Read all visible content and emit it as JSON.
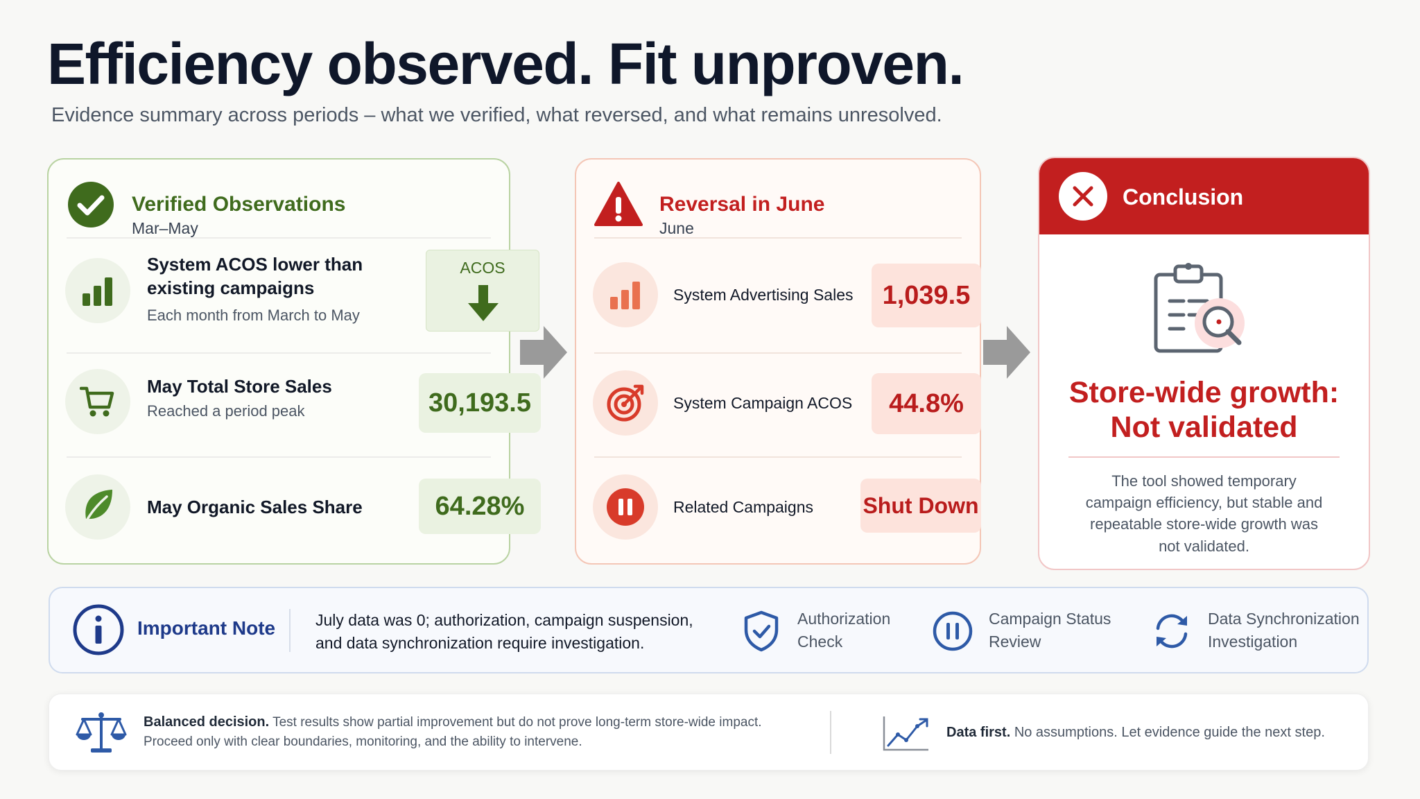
{
  "header": {
    "title": "Efficiency observed. Fit unproven.",
    "subtitle": "Evidence summary across periods – what we verified, what reversed, and what remains unresolved."
  },
  "verified": {
    "title": "Verified Observations",
    "period": "Mar–May",
    "rows": [
      {
        "title": "System ACOS lower than existing campaigns",
        "sub": "Each month from March to May",
        "metric_label": "ACOS"
      },
      {
        "title": "May Total Store Sales",
        "sub": "Reached a period peak",
        "metric": "30,193.5"
      },
      {
        "title": "May Organic Sales Share",
        "metric": "64.28%"
      }
    ]
  },
  "reversal": {
    "title": "Reversal in June",
    "period": "June",
    "rows": [
      {
        "label": "System Advertising Sales",
        "metric": "1,039.5"
      },
      {
        "label": "System Campaign ACOS",
        "metric": "44.8%"
      },
      {
        "label": "Related Campaigns",
        "metric": "Shut Down"
      }
    ]
  },
  "conclusion": {
    "title": "Conclusion",
    "headline_1": "Store-wide growth:",
    "headline_2": "Not validated",
    "body": "The tool showed temporary campaign efficiency, but stable and repeatable store-wide growth was not validated."
  },
  "note": {
    "title": "Important Note",
    "text": "July data was 0; authorization, campaign suspension, and data synchronization require investigation.",
    "items": [
      {
        "icon": "shield-check-icon",
        "label_1": "Authorization",
        "label_2": "Check"
      },
      {
        "icon": "pause-circle-icon",
        "label_1": "Campaign Status",
        "label_2": "Review"
      },
      {
        "icon": "sync-icon",
        "label_1": "Data Synchronization",
        "label_2": "Investigation"
      }
    ]
  },
  "footer": {
    "left_bold": "Balanced decision.",
    "left_text_1": "Test results show partial improvement but do not prove long-term store-wide impact.",
    "left_text_2": "Proceed only with clear boundaries, monitoring, and the ability to intervene.",
    "right_bold": "Data first.",
    "right_text": "No assumptions. Let evidence guide the next step."
  },
  "colors": {
    "green": "#3f6b1d",
    "red": "#c21f1f",
    "navy": "#1e3a8a"
  }
}
